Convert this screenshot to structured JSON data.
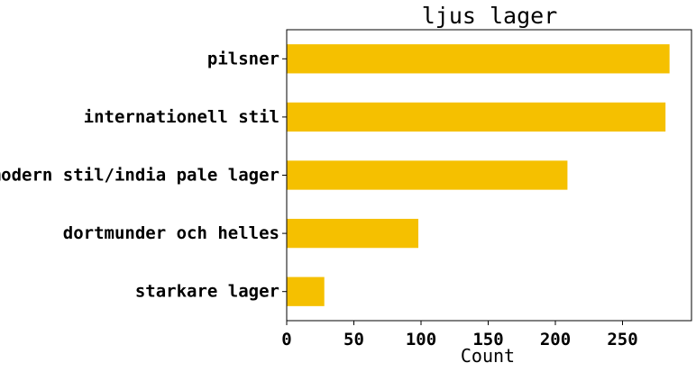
{
  "chart_data": {
    "type": "bar",
    "orientation": "horizontal",
    "title": "ljus lager",
    "xlabel": "Count",
    "ylabel": "",
    "categories": [
      "pilsner",
      "internationell stil",
      "modern stil/india pale lager",
      "dortmunder och helles",
      "starkare lager"
    ],
    "values": [
      285,
      282,
      209,
      98,
      28
    ],
    "xlim": [
      0,
      300
    ],
    "xticks": [
      0,
      50,
      100,
      150,
      200,
      250
    ],
    "grid": false,
    "bar_color": "#f5c000"
  }
}
